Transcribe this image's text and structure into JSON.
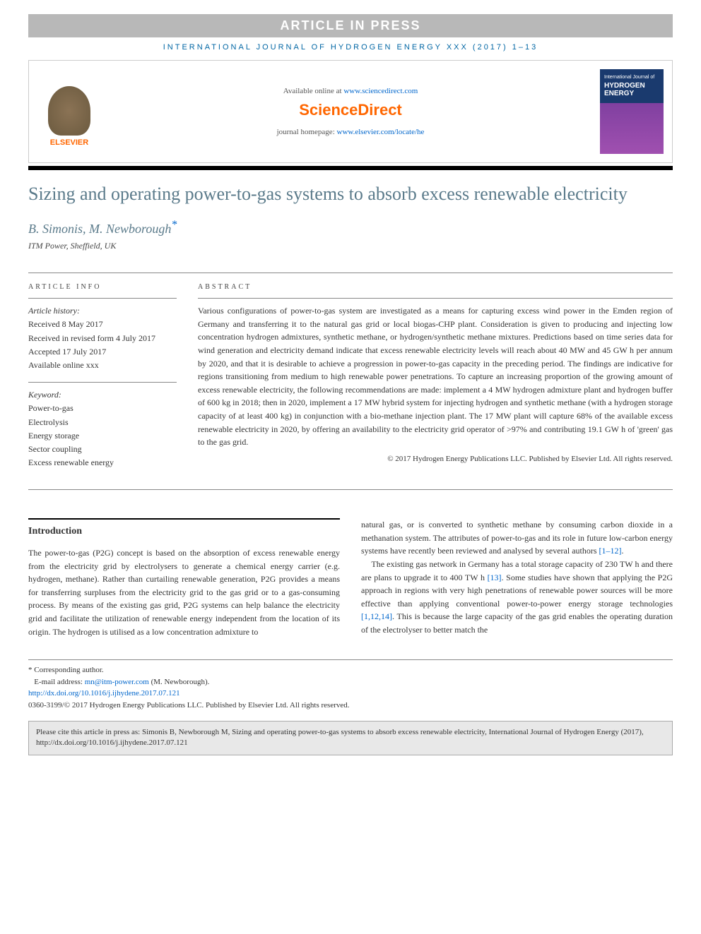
{
  "banner": "ARTICLE IN PRESS",
  "journal_header": "INTERNATIONAL JOURNAL OF HYDROGEN ENERGY XXX (2017) 1–13",
  "header": {
    "elsevier": "ELSEVIER",
    "available_prefix": "Available online at ",
    "available_link": "www.sciencedirect.com",
    "sciencedirect": "ScienceDirect",
    "homepage_prefix": "journal homepage: ",
    "homepage_link": "www.elsevier.com/locate/he",
    "cover_small": "International Journal of",
    "cover_main1": "HYDROGEN",
    "cover_main2": "ENERGY"
  },
  "title": "Sizing and operating power-to-gas systems to absorb excess renewable electricity",
  "authors": "B. Simonis, M. Newborough",
  "corresp_mark": "*",
  "affiliation": "ITM Power, Sheffield, UK",
  "info": {
    "label": "ARTICLE INFO",
    "history_label": "Article history:",
    "received": "Received 8 May 2017",
    "revised": "Received in revised form 4 July 2017",
    "accepted": "Accepted 17 July 2017",
    "online": "Available online xxx",
    "keyword_label": "Keyword:",
    "k1": "Power-to-gas",
    "k2": "Electrolysis",
    "k3": "Energy storage",
    "k4": "Sector coupling",
    "k5": "Excess renewable energy"
  },
  "abstract": {
    "label": "ABSTRACT",
    "text": "Various configurations of power-to-gas system are investigated as a means for capturing excess wind power in the Emden region of Germany and transferring it to the natural gas grid or local biogas-CHP plant. Consideration is given to producing and injecting low concentration hydrogen admixtures, synthetic methane, or hydrogen/synthetic methane mixtures. Predictions based on time series data for wind generation and electricity demand indicate that excess renewable electricity levels will reach about 40 MW and 45 GW h per annum by 2020, and that it is desirable to achieve a progression in power-to-gas capacity in the preceding period. The findings are indicative for regions transitioning from medium to high renewable power penetrations. To capture an increasing proportion of the growing amount of excess renewable electricity, the following recommendations are made: implement a 4 MW hydrogen admixture plant and hydrogen buffer of 600 kg in 2018; then in 2020, implement a 17 MW hybrid system for injecting hydrogen and synthetic methane (with a hydrogen storage capacity of at least 400 kg) in conjunction with a bio-methane injection plant. The 17 MW plant will capture 68% of the available excess renewable electricity in 2020, by offering an availability to the electricity grid operator of >97% and contributing 19.1 GW h of 'green' gas to the gas grid.",
    "copyright": "© 2017 Hydrogen Energy Publications LLC. Published by Elsevier Ltd. All rights reserved."
  },
  "body": {
    "intro_heading": "Introduction",
    "col1_p1": "The power-to-gas (P2G) concept is based on the absorption of excess renewable energy from the electricity grid by electrolysers to generate a chemical energy carrier (e.g. hydrogen, methane). Rather than curtailing renewable generation, P2G provides a means for transferring surpluses from the electricity grid to the gas grid or to a gas-consuming process. By means of the existing gas grid, P2G systems can help balance the electricity grid and facilitate the utilization of renewable energy independent from the location of its origin. The hydrogen is utilised as a low concentration admixture to",
    "col2_p1_a": "natural gas, or is converted to synthetic methane by consuming carbon dioxide in a methanation system. The attributes of power-to-gas and its role in future low-carbon energy systems have recently been reviewed and analysed by several authors ",
    "col2_ref1": "[1–12]",
    "col2_p1_b": ".",
    "col2_p2_a": "The existing gas network in Germany has a total storage capacity of 230 TW h and there are plans to upgrade it to 400 TW h ",
    "col2_ref2": "[13]",
    "col2_p2_b": ". Some studies have shown that applying the P2G approach in regions with very high penetrations of renewable power sources will be more effective than applying conventional power-to-power energy storage technologies ",
    "col2_ref3": "[1,12,14]",
    "col2_p2_c": ". This is because the large capacity of the gas grid enables the operating duration of the electrolyser to better match the"
  },
  "footnotes": {
    "corresp": "* Corresponding author.",
    "email_label": "E-mail address: ",
    "email": "mn@itm-power.com",
    "email_suffix": " (M. Newborough).",
    "doi": "http://dx.doi.org/10.1016/j.ijhydene.2017.07.121",
    "issn": "0360-3199/© 2017 Hydrogen Energy Publications LLC. Published by Elsevier Ltd. All rights reserved."
  },
  "citation": "Please cite this article in press as: Simonis B, Newborough M, Sizing and operating power-to-gas systems to absorb excess renewable electricity, International Journal of Hydrogen Energy (2017), http://dx.doi.org/10.1016/j.ijhydene.2017.07.121"
}
